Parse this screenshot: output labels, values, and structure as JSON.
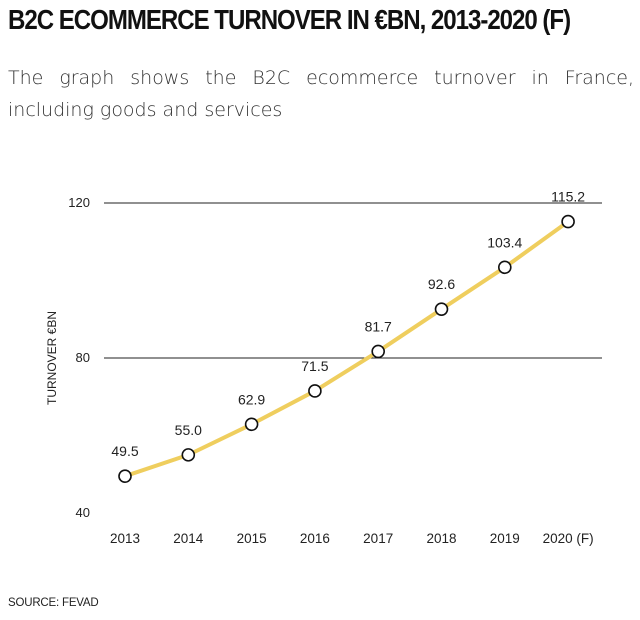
{
  "header": {
    "title": "B2C ECOMMERCE TURNOVER IN €BN, 2013-2020 (F)",
    "subtitle": "The graph shows the B2C ecommerce turnover in France, including goods and services"
  },
  "footer": {
    "source": "SOURCE: FEVAD"
  },
  "colors": {
    "line": "#efce5e",
    "grid": "#222222",
    "marker_stroke": "#111111",
    "marker_fill": "#ffffff"
  },
  "chart_data": {
    "type": "line",
    "title": "B2C ECOMMERCE TURNOVER IN €BN, 2013-2020 (F)",
    "xlabel": "",
    "ylabel": "TURNOVER €BN",
    "categories": [
      "2013",
      "2014",
      "2015",
      "2016",
      "2017",
      "2018",
      "2019",
      "2020 (F)"
    ],
    "values": [
      49.5,
      55.0,
      62.9,
      71.5,
      81.7,
      92.6,
      103.4,
      115.2
    ],
    "data_labels": [
      "49.5",
      "55.0",
      "62.9",
      "71.5",
      "81.7",
      "92.6",
      "103.4",
      "115.2"
    ],
    "yticks": [
      40,
      80,
      120
    ],
    "ylim": [
      40,
      120
    ],
    "grid": true,
    "legend": "none"
  }
}
